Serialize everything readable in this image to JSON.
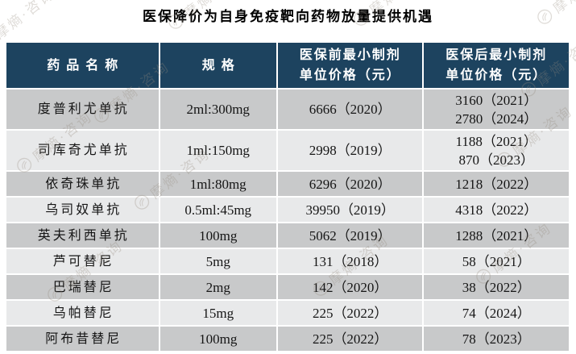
{
  "title": "医保降价为自身免疫靶向药物放量提供机遇",
  "watermark": {
    "text": "摩熵·咨询",
    "icon": "hand-in-circle-logo"
  },
  "colors": {
    "header_bg": "#1d435f",
    "header_text": "#ffffff",
    "row_grey": "#c8c9ca",
    "row_light": "#e8e9ea",
    "title_text": "#000000"
  },
  "chart_data": {
    "type": "table",
    "title": "医保降价为自身免疫靶向药物放量提供机遇",
    "columns": [
      "药品名称",
      "规格",
      "医保前最小制剂\n单位价格（元）",
      "医保后最小制剂\n单位价格（元）"
    ],
    "rows": [
      [
        "度普利尤单抗",
        "2ml:300mg",
        "6666（2020）",
        "3160（2021）\n2780（2024）"
      ],
      [
        "司库奇尤单抗",
        "1ml:150mg",
        "2998（2019）",
        "1188（2021）\n870（2023）"
      ],
      [
        "依奇珠单抗",
        "1ml:80mg",
        "6296（2020）",
        "1218（2022）"
      ],
      [
        "乌司奴单抗",
        "0.5ml:45mg",
        "39950（2019）",
        "4318（2022）"
      ],
      [
        "英夫利西单抗",
        "100mg",
        "5062（2019）",
        "1288（2021）"
      ],
      [
        "芦可替尼",
        "5mg",
        "131（2018）",
        "58（2021）"
      ],
      [
        "巴瑞替尼",
        "2mg",
        "142（2020）",
        "38（2022）"
      ],
      [
        "乌帕替尼",
        "15mg",
        "225（2022）",
        "74（2024）"
      ],
      [
        "阿布昔替尼",
        "100mg",
        "225（2022）",
        "78（2023）"
      ]
    ]
  }
}
